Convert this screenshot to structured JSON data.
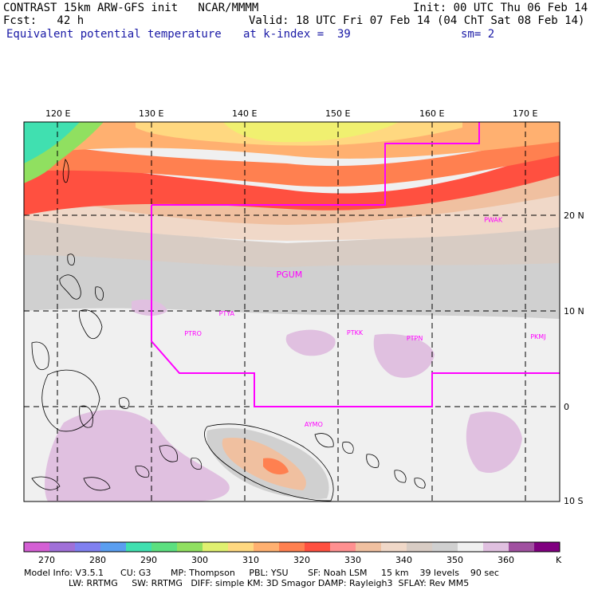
{
  "header": {
    "line1_left": "CONTRAST 15km ARW-GFS init   NCAR/MMMM",
    "line1_right": "Init: 00 UTC Thu 06 Feb 14",
    "line2_left": "Fcst:   42 h",
    "line2_right": "Valid: 18 UTC Fri 07 Feb 14 (04 ChT Sat 08 Feb 14)",
    "line3_left": "Equivalent potential temperature",
    "line3_mid": "at k-index =  39",
    "line3_right": "sm= 2"
  },
  "map": {
    "lon_ticks": [
      "120 E",
      "130 E",
      "140 E",
      "150 E",
      "160 E",
      "170 E"
    ],
    "lon_values": [
      120,
      130,
      140,
      150,
      160,
      170
    ],
    "lat_ticks": [
      "20 N",
      "10 N",
      "0",
      "10 S"
    ],
    "lat_values": [
      20,
      10,
      0,
      -10
    ],
    "stations": [
      {
        "id": "PWAK",
        "lon": 166.6,
        "lat": 19.3
      },
      {
        "id": "PGUM",
        "lon": 144.8,
        "lat": 13.5
      },
      {
        "id": "PTYA",
        "lon": 138.1,
        "lat": 9.5
      },
      {
        "id": "PTRO",
        "lon": 134.5,
        "lat": 7.4
      },
      {
        "id": "PTKK",
        "lon": 151.8,
        "lat": 7.5
      },
      {
        "id": "PTPN",
        "lon": 158.2,
        "lat": 6.9
      },
      {
        "id": "PKMJ",
        "lon": 171.4,
        "lat": 7.1
      },
      {
        "id": "AYMO",
        "lon": 147.4,
        "lat": -2.1
      }
    ],
    "station_color": "#ff00ff",
    "region_color": "#ff00ff"
  },
  "colorbar": {
    "labels": [
      "270",
      "280",
      "290",
      "300",
      "310",
      "320",
      "330",
      "340",
      "350",
      "360",
      "K"
    ],
    "colors": [
      "#d45fd4",
      "#a070d8",
      "#8080f0",
      "#5a9ef0",
      "#40e0b0",
      "#5ce080",
      "#90e060",
      "#e0f070",
      "#ffd880",
      "#ffb070",
      "#ff8050",
      "#ff5040",
      "#ff9090",
      "#f0c0a0",
      "#f0d8c8",
      "#d8ccc4",
      "#d0d0d0",
      "#f0f0f0",
      "#e0c0e0",
      "#a050a0",
      "#800080"
    ]
  },
  "footer": {
    "line1": "Model Info: V3.5.1      CU: G3       MP: Thompson     PBL: YSU       SF: Noah LSM     15 km    39 levels    90 sec",
    "line2": "                LW: RRTMG     SW: RRTMG   DIFF: simple KM: 3D Smagor DAMP: Rayleigh3  SFLAY: Rev MM5"
  }
}
